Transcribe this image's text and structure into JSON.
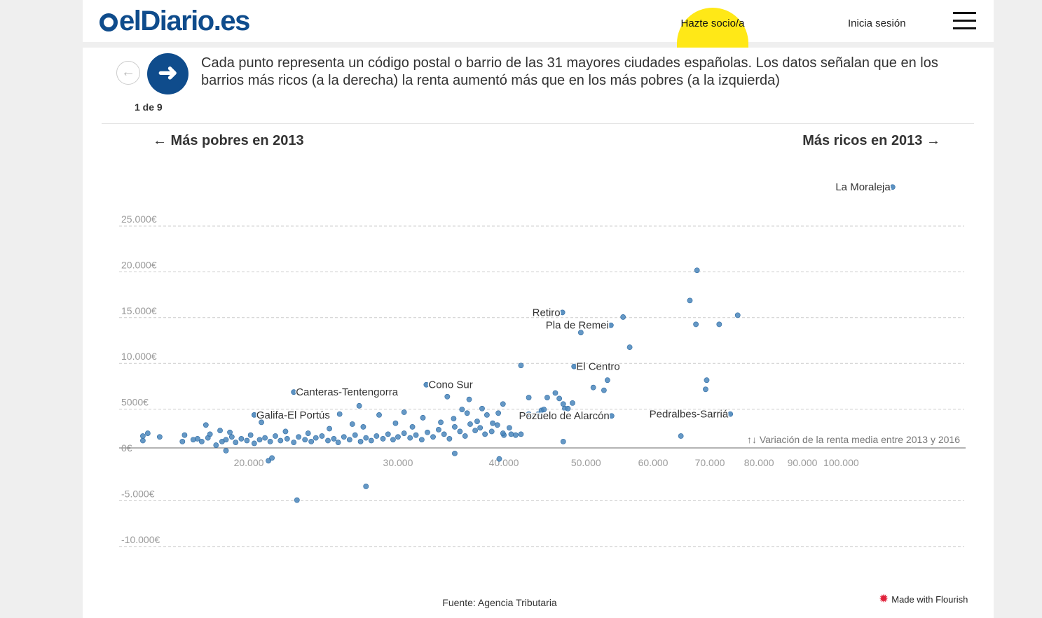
{
  "header": {
    "logo_text": "elDiario.es",
    "socio_label": "Hazte socio/a",
    "login_label": "Inicia sesión",
    "menu_icon": "hamburger-menu-icon",
    "brand_color": "#0f4c8c",
    "socio_color": "#ffe817"
  },
  "story": {
    "prev_icon": "arrow-left-icon",
    "next_icon": "arrow-right-icon",
    "counter": "1 de 9",
    "description": "Cada punto representa un código postal o barrio de las 31 mayores ciudades españolas. Los datos señalan que en los barrios más ricos (a la derecha) la renta aumentó más que en los más pobres (a la izquierda)",
    "left_label": "← Más pobres en 2013",
    "right_label": "Más ricos en 2013 →"
  },
  "chart_data": {
    "type": "scatter",
    "x_scale": "log",
    "x_ticks": [
      {
        "value": 20000,
        "label": "20.000"
      },
      {
        "value": 30000,
        "label": "30.000"
      },
      {
        "value": 40000,
        "label": "40.000"
      },
      {
        "value": 50000,
        "label": "50.000"
      },
      {
        "value": 60000,
        "label": "60.000"
      },
      {
        "value": 70000,
        "label": "70.000"
      },
      {
        "value": 80000,
        "label": "80.000"
      },
      {
        "value": 90000,
        "label": "90.000"
      },
      {
        "value": 100000,
        "label": "100.000"
      }
    ],
    "y_ticks": [
      {
        "value": 25000,
        "label": "25.000€"
      },
      {
        "value": 20000,
        "label": "20.000€"
      },
      {
        "value": 15000,
        "label": "15.000€"
      },
      {
        "value": 10000,
        "label": "10.000€"
      },
      {
        "value": 5000,
        "label": "5000€"
      },
      {
        "value": 0,
        "label": "0€"
      },
      {
        "value": -5000,
        "label": "-5.000€"
      },
      {
        "value": -10000,
        "label": "-10.000€"
      }
    ],
    "ylim": [
      -10000,
      25000
    ],
    "ylabel": "↑↓ Variación de la renta media entre 2013 y 2016",
    "grid": true,
    "point_color": "#4a86bb",
    "labels": [
      {
        "text": "La Moraleja",
        "x": 115000,
        "y": 28500
      },
      {
        "text": "Retiro",
        "x": 46900,
        "y": 14800
      },
      {
        "text": "Pla de Remei",
        "x": 53500,
        "y": 13400
      },
      {
        "text": "El Centro",
        "x": 48400,
        "y": 8900
      },
      {
        "text": "Cono Sur",
        "x": 32400,
        "y": 6900
      },
      {
        "text": "Canteras-Tentengorra",
        "x": 22600,
        "y": 6100
      },
      {
        "text": "Galifa-El Portús",
        "x": 20300,
        "y": 3600
      },
      {
        "text": "Pozuelo de Alarcón",
        "x": 53600,
        "y": 3500
      },
      {
        "text": "Pedralbes-Sarriá",
        "x": 74000,
        "y": 3700
      }
    ],
    "points": [
      [
        15000,
        800
      ],
      [
        15200,
        1600
      ],
      [
        15700,
        1200
      ],
      [
        16700,
        700
      ],
      [
        17200,
        900
      ],
      [
        17400,
        1000
      ],
      [
        17600,
        700
      ],
      [
        17900,
        1100
      ],
      [
        18000,
        1500
      ],
      [
        18300,
        300
      ],
      [
        18600,
        700
      ],
      [
        18800,
        900
      ],
      [
        19100,
        1200
      ],
      [
        19300,
        600
      ],
      [
        19600,
        1000
      ],
      [
        19900,
        800
      ],
      [
        20100,
        1400
      ],
      [
        20300,
        500
      ],
      [
        20600,
        900
      ],
      [
        20900,
        1100
      ],
      [
        21200,
        700
      ],
      [
        21500,
        1300
      ],
      [
        21800,
        800
      ],
      [
        22200,
        1000
      ],
      [
        22600,
        600
      ],
      [
        22900,
        1200
      ],
      [
        23300,
        900
      ],
      [
        23700,
        700
      ],
      [
        24000,
        1100
      ],
      [
        24400,
        1300
      ],
      [
        24800,
        800
      ],
      [
        25200,
        1000
      ],
      [
        25500,
        600
      ],
      [
        25900,
        1200
      ],
      [
        26300,
        900
      ],
      [
        26700,
        1400
      ],
      [
        27100,
        700
      ],
      [
        27500,
        1100
      ],
      [
        27900,
        800
      ],
      [
        28300,
        1300
      ],
      [
        28800,
        1000
      ],
      [
        29200,
        1500
      ],
      [
        29600,
        900
      ],
      [
        30000,
        1200
      ],
      [
        30500,
        1600
      ],
      [
        31000,
        1100
      ],
      [
        31500,
        1400
      ],
      [
        32000,
        900
      ],
      [
        32500,
        1700
      ],
      [
        33000,
        1200
      ],
      [
        33500,
        2000
      ],
      [
        34000,
        1500
      ],
      [
        34500,
        1000
      ],
      [
        35000,
        2300
      ],
      [
        35500,
        1800
      ],
      [
        36000,
        1300
      ],
      [
        36500,
        2600
      ],
      [
        37000,
        1900
      ],
      [
        37500,
        2200
      ],
      [
        38000,
        1500
      ],
      [
        38700,
        1800
      ],
      [
        39300,
        2500
      ],
      [
        40000,
        1400
      ],
      [
        16800,
        1400
      ],
      [
        17800,
        2500
      ],
      [
        18500,
        1900
      ],
      [
        19000,
        1700
      ],
      [
        20700,
        2800
      ],
      [
        22100,
        1800
      ],
      [
        23500,
        1600
      ],
      [
        24900,
        2100
      ],
      [
        25600,
        3700
      ],
      [
        26500,
        2600
      ],
      [
        27000,
        4600
      ],
      [
        27300,
        2300
      ],
      [
        28500,
        3600
      ],
      [
        29800,
        2700
      ],
      [
        30500,
        3900
      ],
      [
        31200,
        2300
      ],
      [
        32100,
        3300
      ],
      [
        33700,
        2800
      ],
      [
        34300,
        5600
      ],
      [
        34900,
        3200
      ],
      [
        35700,
        4200
      ],
      [
        36200,
        3800
      ],
      [
        36400,
        5300
      ],
      [
        37200,
        2900
      ],
      [
        37700,
        4300
      ],
      [
        38200,
        3600
      ],
      [
        38800,
        2700
      ],
      [
        39400,
        3800
      ],
      [
        39900,
        4800
      ],
      [
        39900,
        1600
      ],
      [
        40600,
        2200
      ],
      [
        40800,
        1500
      ],
      [
        41300,
        1400
      ],
      [
        41900,
        1500
      ],
      [
        42800,
        3700
      ],
      [
        43300,
        3500
      ],
      [
        43900,
        3700
      ],
      [
        44300,
        4100
      ],
      [
        44600,
        4200
      ],
      [
        45000,
        5500
      ],
      [
        46000,
        6000
      ],
      [
        46500,
        5400
      ],
      [
        47000,
        4800
      ],
      [
        47200,
        4300
      ],
      [
        47600,
        4300
      ],
      [
        48200,
        4900
      ],
      [
        47000,
        700
      ],
      [
        41900,
        9000
      ],
      [
        42800,
        5500
      ],
      [
        51000,
        6600
      ],
      [
        53000,
        7400
      ],
      [
        52500,
        6300
      ],
      [
        56300,
        11000
      ],
      [
        55300,
        14300
      ],
      [
        67600,
        19400
      ],
      [
        66300,
        16100
      ],
      [
        67400,
        13500
      ],
      [
        69400,
        7400
      ],
      [
        69200,
        6400
      ],
      [
        75500,
        14500
      ],
      [
        71800,
        13500
      ],
      [
        64700,
        1300
      ],
      [
        49300,
        12600
      ],
      [
        27500,
        -4200
      ],
      [
        22800,
        -5700
      ],
      [
        21100,
        -1400
      ],
      [
        21300,
        -1100
      ],
      [
        18800,
        -300
      ],
      [
        39500,
        -1200
      ],
      [
        35000,
        -600
      ],
      [
        15000,
        1300
      ]
    ],
    "callouts": [
      [
        46000,
        6800
      ],
      [
        49800,
        5900
      ],
      [
        43300,
        2800
      ],
      [
        48200,
        4600
      ],
      [
        45700,
        4500
      ]
    ]
  },
  "footer": {
    "source": "Fuente: Agencia Tributaria",
    "made_with": "Made with Flourish",
    "flourish_icon": "flourish-logo-icon"
  }
}
